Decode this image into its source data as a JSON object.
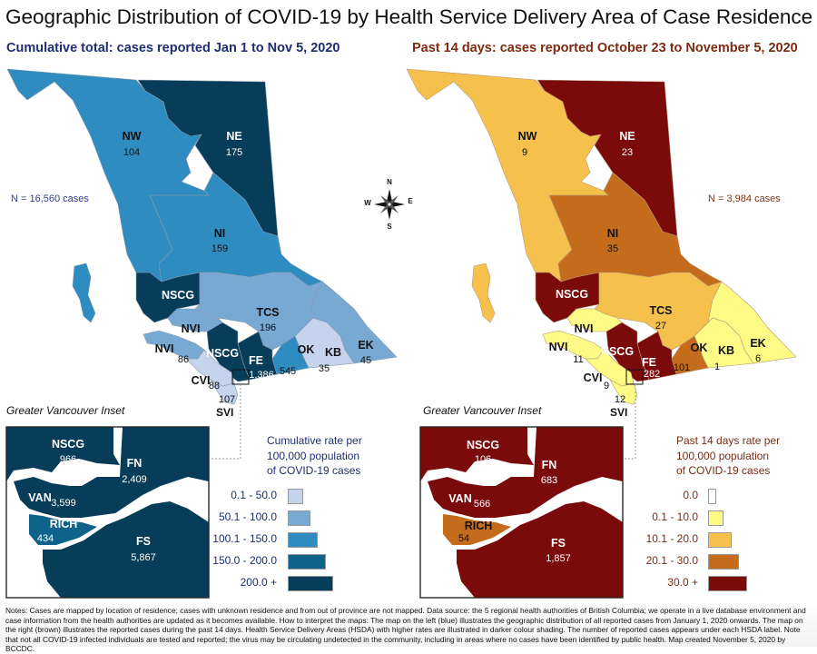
{
  "title": "Geographic Distribution of COVID-19 by Health Service Delivery Area of Case Residence",
  "left_panel": {
    "subtitle": "Cumulative total: cases reported Jan 1 to Nov 5, 2020",
    "n_cases": "N = 16,560 cases",
    "regions": [
      {
        "code": "NW",
        "value": "104"
      },
      {
        "code": "NE",
        "value": "175"
      },
      {
        "code": "NI",
        "value": "159"
      },
      {
        "code": "NSCG",
        "value": ""
      },
      {
        "code": "TCS",
        "value": "196"
      },
      {
        "code": "NVI",
        "value": ""
      },
      {
        "code": "NVI",
        "value": "86"
      },
      {
        "code": "NSCG",
        "value": ""
      },
      {
        "code": "FE",
        "value": "1,386"
      },
      {
        "code": "OK",
        "value": "545"
      },
      {
        "code": "KB",
        "value": "35"
      },
      {
        "code": "EK",
        "value": "45"
      },
      {
        "code": "CVI",
        "value": "88"
      },
      {
        "code": "SVI",
        "value": "107"
      }
    ],
    "inset_title": "Greater Vancouver Inset",
    "inset_regions": [
      {
        "code": "NSCG",
        "value": "966"
      },
      {
        "code": "FN",
        "value": "2,409"
      },
      {
        "code": "VAN",
        "value": "3,599"
      },
      {
        "code": "RICH",
        "value": "434"
      },
      {
        "code": "FS",
        "value": "5,867"
      }
    ],
    "legend_title": [
      "Cumulative rate per",
      "100,000 population",
      "of COVID-19 cases"
    ],
    "legend": [
      {
        "label": "0.1 - 50.0",
        "color": "#c5d3ec"
      },
      {
        "label": "50.1 - 100.0",
        "color": "#78a9d3"
      },
      {
        "label": "100.1 - 150.0",
        "color": "#2e8cc0"
      },
      {
        "label": "150.0 - 200.0",
        "color": "#0f6289"
      },
      {
        "label": "200.0 +",
        "color": "#073d58"
      }
    ]
  },
  "right_panel": {
    "subtitle": "Past 14 days: cases reported October 23 to November 5, 2020",
    "n_cases": "N = 3,984 cases",
    "regions": [
      {
        "code": "NW",
        "value": "9"
      },
      {
        "code": "NE",
        "value": "23"
      },
      {
        "code": "NI",
        "value": "35"
      },
      {
        "code": "NSCG",
        "value": ""
      },
      {
        "code": "TCS",
        "value": "27"
      },
      {
        "code": "NVI",
        "value": ""
      },
      {
        "code": "NVI",
        "value": "11"
      },
      {
        "code": "NSCG",
        "value": ""
      },
      {
        "code": "FE",
        "value": "282"
      },
      {
        "code": "OK",
        "value": "101"
      },
      {
        "code": "KB",
        "value": "1"
      },
      {
        "code": "EK",
        "value": "6"
      },
      {
        "code": "CVI",
        "value": "9"
      },
      {
        "code": "SVI",
        "value": "12"
      }
    ],
    "inset_title": "Greater Vancouver Inset",
    "inset_regions": [
      {
        "code": "NSCG",
        "value": "106"
      },
      {
        "code": "FN",
        "value": "683"
      },
      {
        "code": "VAN",
        "value": "566"
      },
      {
        "code": "RICH",
        "value": "54"
      },
      {
        "code": "FS",
        "value": "1,857"
      }
    ],
    "legend_title": [
      "Past 14 days rate per",
      "100,000 population",
      "of COVID-19 cases"
    ],
    "legend": [
      {
        "label": "0.0",
        "color": "#ffffff"
      },
      {
        "label": "0.1 - 10.0",
        "color": "#fdfb86"
      },
      {
        "label": "10.1 - 20.0",
        "color": "#f6c04d"
      },
      {
        "label": "20.1 - 30.0",
        "color": "#c56c1c"
      },
      {
        "label": "30.0 +",
        "color": "#7b0a0a"
      }
    ]
  },
  "compass": {
    "n": "N",
    "s": "S",
    "e": "E",
    "w": "W"
  },
  "notes": "Notes: Cases are mapped by location of residence; cases with unknown residence and from out of province are not mapped. Data source: the 5 regional health authorities of British Columbia; we operate in a live database environment and case information from the health authorities are updated as it becomes available. How to interpret the maps: The map on the left (blue) illustrates the geographic distribution of all reported cases from January 1, 2020 onwards. The map on the right (brown) illustrates the reported cases during the past 14 days. Health Service Delivery Areas (HSDA) with higher rates are illustrated in darker colour shading. The number of reported cases appears under each HSDA label. Note that not all COVID-19 infected individuals are tested and reported; the virus may be circulating undetected in the community, including in areas where no cases have been identified by public health. Map created November 5, 2020 by BCCDC."
}
